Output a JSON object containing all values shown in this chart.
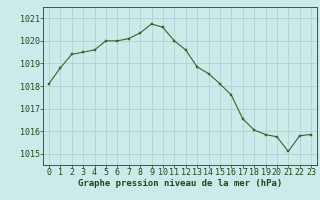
{
  "hours": [
    0,
    1,
    2,
    3,
    4,
    5,
    6,
    7,
    8,
    9,
    10,
    11,
    12,
    13,
    14,
    15,
    16,
    17,
    18,
    19,
    20,
    21,
    22,
    23
  ],
  "pressure": [
    1018.1,
    1018.8,
    1019.4,
    1019.5,
    1019.6,
    1020.0,
    1020.0,
    1020.1,
    1020.35,
    1020.75,
    1020.6,
    1020.0,
    1019.6,
    1018.85,
    1018.55,
    1018.1,
    1017.6,
    1016.55,
    1016.05,
    1015.85,
    1015.75,
    1015.1,
    1015.8,
    1015.85
  ],
  "line_color": "#2d6a2d",
  "marker_color": "#2d6a2d",
  "bg_color": "#cceaea",
  "grid_color": "#aacccc",
  "xlabel": "Graphe pression niveau de la mer (hPa)",
  "xlabel_color": "#1a4a1a",
  "tick_color": "#1a4a1a",
  "ylim": [
    1014.5,
    1021.5
  ],
  "yticks": [
    1015,
    1016,
    1017,
    1018,
    1019,
    1020,
    1021
  ],
  "xticks": [
    0,
    1,
    2,
    3,
    4,
    5,
    6,
    7,
    8,
    9,
    10,
    11,
    12,
    13,
    14,
    15,
    16,
    17,
    18,
    19,
    20,
    21,
    22,
    23
  ],
  "xlabel_fontsize": 6.5,
  "tick_fontsize": 6.0
}
